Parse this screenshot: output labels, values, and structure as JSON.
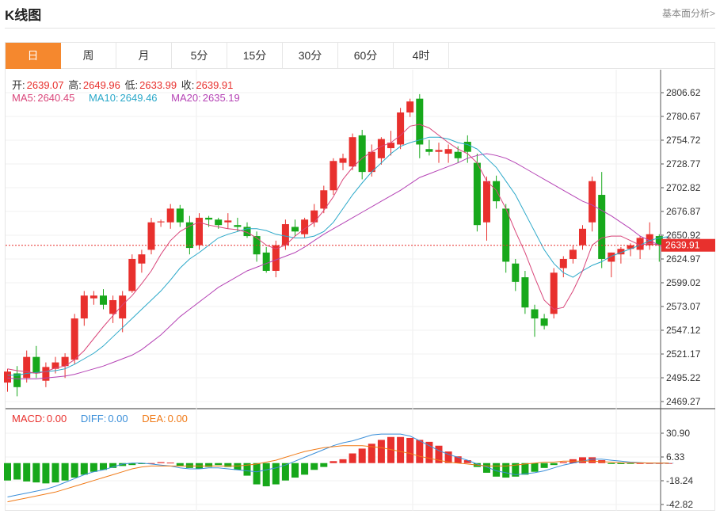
{
  "page": {
    "title": "K线图",
    "analysis_link": "基本面分析>"
  },
  "tabs": [
    "日",
    "周",
    "月",
    "5分",
    "15分",
    "30分",
    "60分",
    "4时"
  ],
  "active_tab": 0,
  "info": {
    "open_label": "开:",
    "open": "2639.07",
    "high_label": "高:",
    "high": "2649.96",
    "low_label": "低:",
    "low": "2633.99",
    "close_label": "收:",
    "close": "2639.91",
    "ma5_label": "MA5:",
    "ma5": "2640.45",
    "ma10_label": "MA10:",
    "ma10": "2649.46",
    "ma20_label": "MA20:",
    "ma20": "2635.19"
  },
  "macd_info": {
    "macd_label": "MACD:",
    "macd": "0.00",
    "diff_label": "DIFF:",
    "diff": "0.00",
    "dea_label": "DEA:",
    "dea": "0.00"
  },
  "colors": {
    "up": "#e8302d",
    "down": "#17a81b",
    "ma5": "#d9467a",
    "ma10": "#2aa8c9",
    "ma20": "#b543b5",
    "diff": "#3b8fd9",
    "dea": "#f07a17",
    "accent": "#f5882e"
  },
  "chart_data": [
    {
      "type": "candlestick",
      "ylim": [
        2469.27,
        2806.62
      ],
      "y_ticks": [
        "2806.62",
        "2780.67",
        "2754.72",
        "2728.77",
        "2702.82",
        "2676.87",
        "2650.92",
        "2624.97",
        "2599.02",
        "2573.07",
        "2547.12",
        "2521.17",
        "2495.22",
        "2469.27"
      ],
      "last_price": "2639.91",
      "candles": [
        [
          2490,
          2505,
          2480,
          2502
        ],
        [
          2500,
          2508,
          2475,
          2485
        ],
        [
          2495,
          2525,
          2490,
          2518
        ],
        [
          2518,
          2530,
          2495,
          2500
        ],
        [
          2492,
          2512,
          2485,
          2507
        ],
        [
          2505,
          2518,
          2500,
          2512
        ],
        [
          2508,
          2522,
          2495,
          2518
        ],
        [
          2515,
          2565,
          2510,
          2560
        ],
        [
          2560,
          2590,
          2552,
          2585
        ],
        [
          2582,
          2590,
          2575,
          2585
        ],
        [
          2585,
          2592,
          2570,
          2575
        ],
        [
          2565,
          2585,
          2555,
          2580
        ],
        [
          2560,
          2590,
          2545,
          2585
        ],
        [
          2590,
          2630,
          2588,
          2625
        ],
        [
          2620,
          2635,
          2610,
          2630
        ],
        [
          2635,
          2670,
          2630,
          2665
        ],
        [
          2665,
          2668,
          2660,
          2666
        ],
        [
          2665,
          2685,
          2658,
          2680
        ],
        [
          2680,
          2684,
          2660,
          2665
        ],
        [
          2665,
          2672,
          2630,
          2637
        ],
        [
          2640,
          2675,
          2635,
          2670
        ],
        [
          2670,
          2672,
          2660,
          2668
        ],
        [
          2668,
          2670,
          2658,
          2662
        ],
        [
          2665,
          2675,
          2658,
          2667
        ],
        [
          2662,
          2670,
          2655,
          2660
        ],
        [
          2660,
          2665,
          2648,
          2650
        ],
        [
          2650,
          2655,
          2622,
          2630
        ],
        [
          2632,
          2638,
          2610,
          2612
        ],
        [
          2612,
          2645,
          2605,
          2640
        ],
        [
          2640,
          2668,
          2635,
          2663
        ],
        [
          2660,
          2668,
          2650,
          2655
        ],
        [
          2652,
          2670,
          2648,
          2668
        ],
        [
          2665,
          2685,
          2660,
          2678
        ],
        [
          2680,
          2705,
          2675,
          2700
        ],
        [
          2700,
          2735,
          2695,
          2732
        ],
        [
          2730,
          2740,
          2722,
          2735
        ],
        [
          2726,
          2762,
          2722,
          2758
        ],
        [
          2760,
          2766,
          2712,
          2720
        ],
        [
          2720,
          2750,
          2715,
          2742
        ],
        [
          2735,
          2758,
          2728,
          2756
        ],
        [
          2746,
          2765,
          2738,
          2752
        ],
        [
          2750,
          2790,
          2745,
          2785
        ],
        [
          2785,
          2800,
          2780,
          2797
        ],
        [
          2800,
          2805,
          2735,
          2750
        ],
        [
          2745,
          2755,
          2738,
          2742
        ],
        [
          2742,
          2752,
          2730,
          2744
        ],
        [
          2740,
          2750,
          2730,
          2745
        ],
        [
          2742,
          2748,
          2730,
          2735
        ],
        [
          2753,
          2760,
          2730,
          2742
        ],
        [
          2730,
          2740,
          2655,
          2662
        ],
        [
          2665,
          2715,
          2645,
          2710
        ],
        [
          2710,
          2716,
          2680,
          2688
        ],
        [
          2680,
          2685,
          2610,
          2622
        ],
        [
          2620,
          2625,
          2590,
          2600
        ],
        [
          2605,
          2612,
          2565,
          2572
        ],
        [
          2570,
          2575,
          2540,
          2560
        ],
        [
          2560,
          2565,
          2548,
          2552
        ],
        [
          2565,
          2615,
          2560,
          2610
        ],
        [
          2615,
          2628,
          2605,
          2625
        ],
        [
          2625,
          2640,
          2620,
          2635
        ],
        [
          2640,
          2662,
          2635,
          2658
        ],
        [
          2665,
          2715,
          2655,
          2710
        ],
        [
          2695,
          2720,
          2615,
          2625
        ],
        [
          2622,
          2632,
          2605,
          2632
        ],
        [
          2630,
          2638,
          2620,
          2636
        ],
        [
          2636,
          2642,
          2628,
          2640
        ],
        [
          2635,
          2650,
          2625,
          2648
        ],
        [
          2640,
          2665,
          2635,
          2652
        ],
        [
          2650,
          2652,
          2622,
          2640
        ],
        [
          2639.07,
          2649.96,
          2633.99,
          2639.91
        ]
      ],
      "ma5": [
        2505,
        2503,
        2502,
        2500,
        2502,
        2506,
        2508,
        2515,
        2525,
        2538,
        2551,
        2563,
        2575,
        2585,
        2598,
        2612,
        2630,
        2645,
        2655,
        2661,
        2665,
        2662,
        2660,
        2658,
        2657,
        2654,
        2648,
        2640,
        2636,
        2640,
        2650,
        2658,
        2665,
        2678,
        2693,
        2712,
        2725,
        2735,
        2742,
        2748,
        2752,
        2760,
        2770,
        2772,
        2768,
        2760,
        2752,
        2745,
        2740,
        2730,
        2710,
        2700,
        2680,
        2655,
        2632,
        2605,
        2580,
        2570,
        2572,
        2590,
        2612,
        2640,
        2648,
        2650,
        2650,
        2645,
        2640,
        2642,
        2640,
        2640.45
      ],
      "ma10": [
        2498,
        2498,
        2500,
        2501,
        2502,
        2503,
        2505,
        2510,
        2516,
        2522,
        2530,
        2540,
        2550,
        2560,
        2570,
        2580,
        2590,
        2602,
        2615,
        2625,
        2632,
        2640,
        2648,
        2652,
        2655,
        2658,
        2658,
        2656,
        2652,
        2650,
        2648,
        2648,
        2650,
        2655,
        2665,
        2680,
        2695,
        2708,
        2720,
        2730,
        2740,
        2748,
        2752,
        2755,
        2758,
        2758,
        2756,
        2752,
        2750,
        2745,
        2735,
        2725,
        2710,
        2695,
        2675,
        2655,
        2635,
        2620,
        2610,
        2605,
        2612,
        2618,
        2622,
        2628,
        2632,
        2636,
        2640,
        2645,
        2648,
        2649.46
      ],
      "ma20": [
        2495,
        2494,
        2494,
        2494,
        2495,
        2496,
        2497,
        2499,
        2502,
        2505,
        2508,
        2512,
        2516,
        2520,
        2526,
        2534,
        2542,
        2552,
        2562,
        2570,
        2578,
        2586,
        2594,
        2600,
        2606,
        2612,
        2616,
        2620,
        2624,
        2628,
        2632,
        2638,
        2645,
        2652,
        2658,
        2664,
        2670,
        2676,
        2682,
        2688,
        2694,
        2700,
        2707,
        2714,
        2718,
        2722,
        2726,
        2730,
        2735,
        2738,
        2740,
        2738,
        2735,
        2730,
        2724,
        2718,
        2712,
        2706,
        2700,
        2694,
        2688,
        2684,
        2678,
        2672,
        2665,
        2658,
        2650,
        2645,
        2640,
        2635.19
      ]
    },
    {
      "type": "bar",
      "title": "MACD",
      "y_ticks": [
        "30.90",
        "6.33",
        "-18.24",
        "-42.82"
      ],
      "ylim": [
        -45,
        35
      ],
      "macd": [
        -18,
        -17,
        -19,
        -20,
        -21,
        -20,
        -18,
        -15,
        -12,
        -9,
        -7,
        -5,
        -3,
        -2,
        -1,
        0,
        1,
        0.5,
        -3,
        -5,
        -6,
        -4,
        -2,
        -4,
        -7,
        -13,
        -22,
        -24,
        -22,
        -18,
        -15,
        -12,
        -7,
        -4,
        2,
        4,
        10,
        15,
        20,
        24,
        27,
        27,
        26,
        24,
        22,
        18,
        12,
        7,
        3,
        -4,
        -10,
        -14,
        -15,
        -14,
        -12,
        -9,
        -5,
        -2,
        1,
        4,
        6,
        6,
        3,
        -1,
        -1,
        -0.5,
        0,
        0,
        0,
        0
      ],
      "diff": [
        -35,
        -33,
        -31,
        -29,
        -27,
        -24,
        -20,
        -16,
        -12,
        -9,
        -7,
        -4,
        -1,
        0,
        0,
        -1,
        -2,
        -3,
        -5,
        -6,
        -6,
        -5,
        -5,
        -6,
        -7,
        -8,
        -9,
        -7,
        -5,
        -2,
        2,
        6,
        10,
        14,
        18,
        21,
        23,
        26,
        29,
        30,
        30,
        30,
        28,
        23,
        18,
        13,
        9,
        6,
        3,
        -1,
        -4,
        -8,
        -10,
        -12,
        -11,
        -10,
        -8,
        -5,
        -2,
        0,
        2,
        4,
        4,
        3,
        2,
        1,
        0.5,
        0,
        0,
        0
      ],
      "dea": [
        -40,
        -38,
        -36,
        -34,
        -32,
        -30,
        -27,
        -24,
        -21,
        -18,
        -15,
        -12,
        -9,
        -6,
        -4,
        -3,
        -3,
        -3,
        -3,
        -3,
        -3,
        -3,
        -3,
        -3,
        -3,
        -2,
        -1,
        1,
        3,
        6,
        9,
        12,
        14,
        16,
        17,
        18,
        18,
        18,
        17,
        16,
        14,
        12,
        10,
        7,
        5,
        3,
        1,
        0,
        -1,
        -2,
        -3,
        -3,
        -3,
        -2,
        -1,
        0,
        1,
        1,
        2,
        2,
        2,
        2,
        1.5,
        1,
        0.5,
        0.3,
        0.2,
        0.1,
        0,
        0
      ]
    }
  ]
}
